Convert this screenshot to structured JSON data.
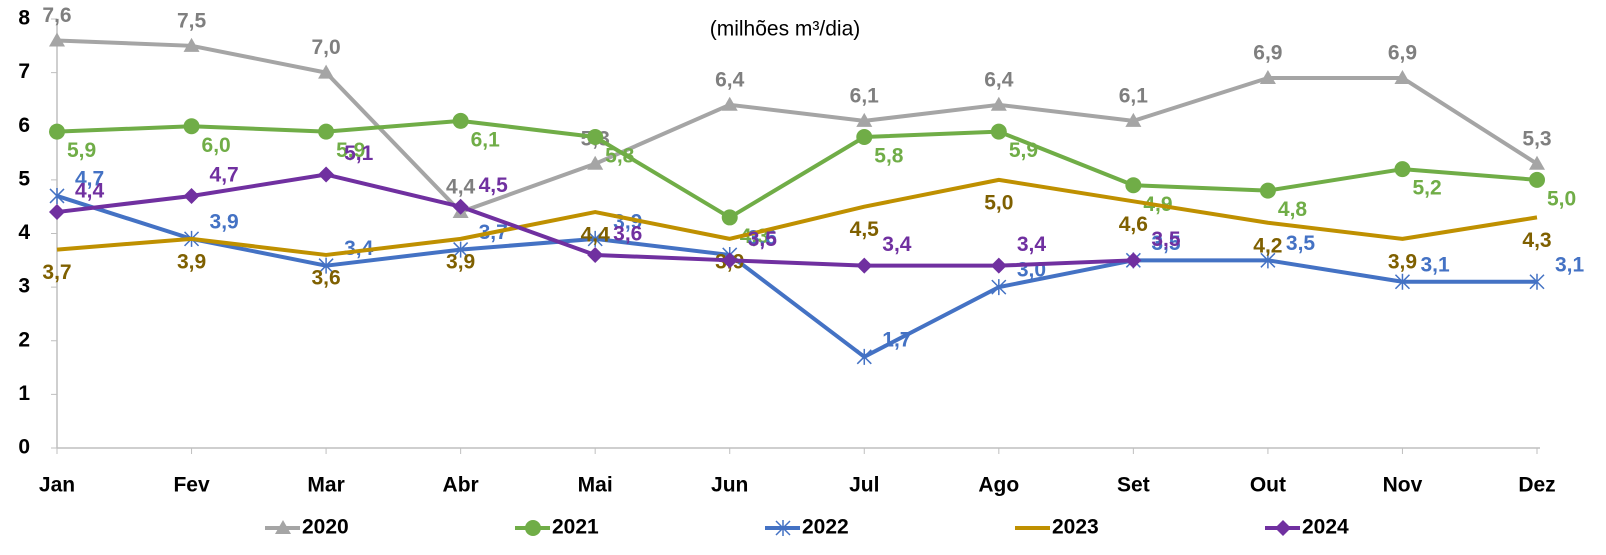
{
  "chart_data": {
    "type": "line",
    "subtitle": "(milhões m³/dia)",
    "categories": [
      "Jan",
      "Fev",
      "Mar",
      "Abr",
      "Mai",
      "Jun",
      "Jul",
      "Ago",
      "Set",
      "Out",
      "Nov",
      "Dez"
    ],
    "ylim": [
      0,
      8
    ],
    "yticks": [
      0,
      1,
      2,
      3,
      4,
      5,
      6,
      7,
      8
    ],
    "grid": false,
    "legend": "bottom",
    "series": [
      {
        "name": "2020",
        "color": "#a5a5a5",
        "label_color": "#7f7f7f",
        "marker": "triangle",
        "values": [
          7.6,
          7.5,
          7.0,
          4.4,
          5.3,
          6.4,
          6.1,
          6.4,
          6.1,
          6.9,
          6.9,
          5.3
        ],
        "value_labels": [
          "7,6",
          "7,5",
          "7,0",
          "4,4",
          "5,3",
          "6,4",
          "6,1",
          "6,4",
          "6,1",
          "6,9",
          "6,9",
          "5,3"
        ]
      },
      {
        "name": "2021",
        "color": "#70ad47",
        "label_color": "#70ad47",
        "marker": "circle",
        "values": [
          5.9,
          6.0,
          5.9,
          6.1,
          5.8,
          4.3,
          5.8,
          5.9,
          4.9,
          4.8,
          5.2,
          5.0
        ],
        "value_labels": [
          "5,9",
          "6,0",
          "5,9",
          "6,1",
          "5,8",
          "4,3",
          "5,8",
          "5,9",
          "4,9",
          "4,8",
          "5,2",
          "5,0"
        ]
      },
      {
        "name": "2022",
        "color": "#4472c4",
        "label_color": "#4472c4",
        "marker": "star",
        "values": [
          4.7,
          3.9,
          3.4,
          3.7,
          3.9,
          3.6,
          1.7,
          3.0,
          3.5,
          3.5,
          3.1,
          3.1
        ],
        "value_labels": [
          "4,7",
          "3,9",
          "3,4",
          "3,7",
          "3,9",
          "3,6",
          "1,7",
          "3,0",
          "3,5",
          "3,5",
          "3,1",
          "3,1"
        ]
      },
      {
        "name": "2023",
        "color": "#bf9000",
        "label_color": "#7f6000",
        "marker": "none",
        "values": [
          3.7,
          3.9,
          3.6,
          3.9,
          4.4,
          3.9,
          4.5,
          5.0,
          4.6,
          4.2,
          3.9,
          4.3
        ],
        "value_labels": [
          "3,7",
          "3,9",
          "3,6",
          "3,9",
          "4,4",
          "3,9",
          "4,5",
          "5,0",
          "4,6",
          "4,2",
          "3,9",
          "4,3"
        ]
      },
      {
        "name": "2024",
        "color": "#7030a0",
        "label_color": "#7030a0",
        "marker": "diamond",
        "values": [
          4.4,
          4.7,
          5.1,
          4.5,
          3.6,
          3.5,
          3.4,
          3.4,
          3.5,
          null,
          null,
          null
        ],
        "value_labels": [
          "4,4",
          "4,7",
          "5,1",
          "4,5",
          "3,6",
          "3,5",
          "3,4",
          "3,4",
          "3,5",
          null,
          null,
          null
        ]
      }
    ]
  }
}
